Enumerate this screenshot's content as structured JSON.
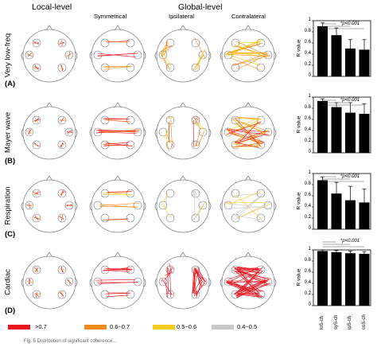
{
  "headers": {
    "local": "Local-level",
    "global": "Global-level",
    "symmetrical": "Symmetrical",
    "ipsilateral": "Ipsilateral",
    "contralateral": "Contralateral"
  },
  "rows": [
    {
      "label": "Very low-freq",
      "letter": "(A)"
    },
    {
      "label": "Mayer wave",
      "letter": "(B)"
    },
    {
      "label": "Respiration",
      "letter": "(C)"
    },
    {
      "label": "Cardiac",
      "letter": "(D)"
    }
  ],
  "legend": [
    {
      "label": ">0.7",
      "color": "#e8141e"
    },
    {
      "label": "0.6~0.7",
      "color": "#f38a1c"
    },
    {
      "label": "0.5~0.6",
      "color": "#f6cc1f"
    },
    {
      "label": "0.4~0.5",
      "color": "#c8c8c8"
    }
  ],
  "caption": "Fig. 5  Distribution of significant coherence...",
  "chart_data": [
    {
      "type": "bar",
      "title": "",
      "ylabel": "R value",
      "ylim": [
        0,
        1
      ],
      "yticks": [
        "0",
        "0.2",
        "0.4",
        "0.6",
        "0.8",
        "1"
      ],
      "categories": [
        "loS-ch",
        "syS-ch",
        "ipS-ch",
        "coS-ch"
      ],
      "values": [
        0.9,
        0.74,
        0.5,
        0.48
      ],
      "errors": [
        0.06,
        0.13,
        0.16,
        0.18
      ],
      "annotation": "*p<0.001"
    },
    {
      "type": "bar",
      "title": "",
      "ylabel": "R value",
      "ylim": [
        0,
        1
      ],
      "yticks": [
        "0",
        "0.2",
        "0.4",
        "0.6",
        "0.8",
        "1"
      ],
      "categories": [
        "loS-ch",
        "syS-ch",
        "ipS-ch",
        "coS-ch"
      ],
      "values": [
        0.93,
        0.82,
        0.72,
        0.7
      ],
      "errors": [
        0.04,
        0.08,
        0.18,
        0.18
      ],
      "annotation": "*p<0.001"
    },
    {
      "type": "bar",
      "title": "",
      "ylabel": "R value",
      "ylim": [
        0,
        1
      ],
      "yticks": [
        "0",
        "0.2",
        "0.4",
        "0.6",
        "0.8",
        "1"
      ],
      "categories": [
        "loS-ch",
        "syS-ch",
        "ipS-ch",
        "coS-ch"
      ],
      "values": [
        0.88,
        0.64,
        0.52,
        0.48
      ],
      "errors": [
        0.06,
        0.2,
        0.25,
        0.24
      ],
      "annotation": "*p<0.001"
    },
    {
      "type": "bar",
      "title": "",
      "ylabel": "R value",
      "ylim": [
        0,
        1
      ],
      "yticks": [
        "0",
        "0.2",
        "0.4",
        "0.6",
        "0.8",
        "1"
      ],
      "categories": [
        "loS-ch",
        "syS-ch",
        "ipS-ch",
        "coS-ch"
      ],
      "values": [
        0.98,
        0.96,
        0.94,
        0.93
      ],
      "errors": [
        0.02,
        0.03,
        0.04,
        0.04
      ],
      "annotation": "*p<0.001"
    }
  ]
}
